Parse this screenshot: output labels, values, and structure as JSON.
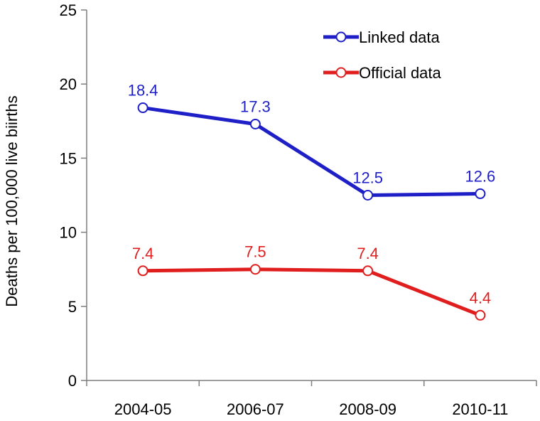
{
  "chart_data": {
    "type": "line",
    "title": "",
    "xlabel": "",
    "ylabel": "Deaths per 100,000 live biirths",
    "categories": [
      "2004-05",
      "2006-07",
      "2008-09",
      "2010-11"
    ],
    "ylim": [
      0,
      25
    ],
    "yticks": [
      0,
      5,
      10,
      15,
      20,
      25
    ],
    "grid": false,
    "legend_position": "top-right",
    "series": [
      {
        "name": "Linked data",
        "color": "#1f1fc8",
        "values": [
          18.4,
          17.3,
          12.5,
          12.6
        ],
        "labels": [
          "18.4",
          "17.3",
          "12.5",
          "12.6"
        ]
      },
      {
        "name": "Official data",
        "color": "#e01e1e",
        "values": [
          7.4,
          7.5,
          7.4,
          4.4
        ],
        "labels": [
          "7.4",
          "7.5",
          "7.4",
          "4.4"
        ]
      }
    ]
  }
}
